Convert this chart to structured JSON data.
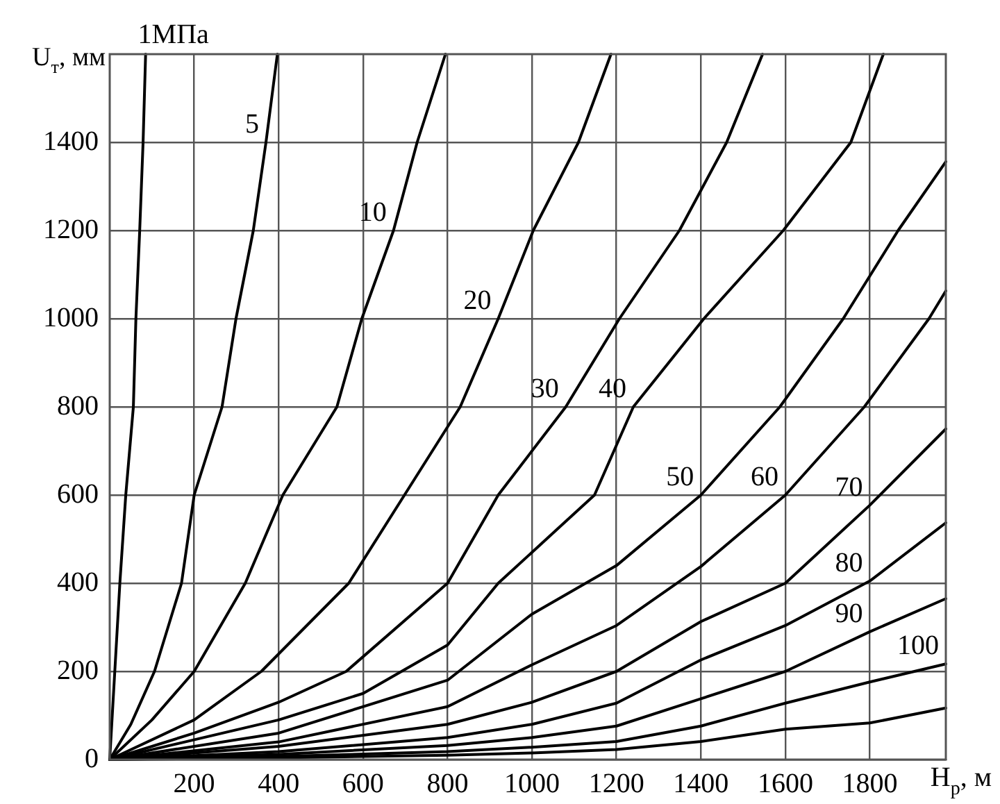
{
  "chart_data": {
    "type": "line",
    "xlabel": "H$_{р}$, м",
    "ylabel": "U$_{т}$, мм",
    "xlim": [
      0,
      1980
    ],
    "ylim": [
      0,
      1600
    ],
    "xticks": [
      200,
      400,
      600,
      800,
      1000,
      1200,
      1400,
      1600,
      1800
    ],
    "yticks": [
      0,
      200,
      400,
      600,
      800,
      1000,
      1200,
      1400
    ],
    "grid": true,
    "legend": false,
    "marker": "none",
    "line_style": "solid",
    "series": [
      {
        "color": "#000000",
        "x": [
          0,
          12,
          24,
          38,
          56,
          62,
          71,
          79,
          85
        ],
        "values": [
          0,
          200,
          400,
          600,
          800,
          1000,
          1200,
          1400,
          1600
        ]
      },
      {
        "color": "#000000",
        "x": [
          0,
          50,
          106,
          170,
          200,
          266,
          299,
          340,
          370,
          397
        ],
        "values": [
          0,
          80,
          200,
          400,
          600,
          800,
          1000,
          1200,
          1400,
          1600
        ]
      },
      {
        "color": "#000000",
        "x": [
          0,
          100,
          200,
          321,
          410,
          538,
          597,
          672,
          728,
          795
        ],
        "values": [
          0,
          90,
          200,
          400,
          600,
          800,
          1000,
          1200,
          1400,
          1600
        ]
      },
      {
        "color": "#000000",
        "x": [
          0,
          200,
          359,
          566,
          698,
          830,
          920,
          1003,
          1110,
          1187
        ],
        "values": [
          0,
          90,
          200,
          400,
          600,
          800,
          1000,
          1200,
          1400,
          1600
        ]
      },
      {
        "color": "#000000",
        "x": [
          0,
          200,
          400,
          560,
          800,
          920,
          1080,
          1207,
          1349,
          1461,
          1546
        ],
        "values": [
          0,
          60,
          130,
          200,
          400,
          600,
          800,
          1000,
          1200,
          1400,
          1600
        ]
      },
      {
        "color": "#000000",
        "x": [
          0,
          400,
          600,
          800,
          920,
          1148,
          1240,
          1407,
          1595,
          1755,
          1832
        ],
        "values": [
          0,
          90,
          150,
          260,
          400,
          600,
          800,
          1000,
          1200,
          1400,
          1600
        ]
      },
      {
        "color": "#000000",
        "x": [
          0,
          400,
          800,
          1000,
          1200,
          1400,
          1587,
          1737,
          1867,
          1980
        ],
        "values": [
          0,
          60,
          180,
          330,
          440,
          600,
          800,
          1000,
          1200,
          1356
        ]
      },
      {
        "color": "#000000",
        "x": [
          0,
          400,
          800,
          1000,
          1200,
          1400,
          1600,
          1787,
          1940,
          1980
        ],
        "values": [
          0,
          40,
          120,
          215,
          304,
          438,
          600,
          800,
          1000,
          1063
        ]
      },
      {
        "color": "#000000",
        "x": [
          0,
          400,
          800,
          1000,
          1200,
          1400,
          1600,
          1800,
          1980
        ],
        "values": [
          0,
          30,
          80,
          130,
          200,
          313,
          400,
          577,
          750
        ]
      },
      {
        "color": "#000000",
        "x": [
          0,
          400,
          800,
          1000,
          1200,
          1400,
          1600,
          1800,
          1980
        ],
        "values": [
          0,
          18,
          50,
          80,
          128,
          226,
          304,
          405,
          537
        ]
      },
      {
        "color": "#000000",
        "x": [
          0,
          400,
          800,
          1000,
          1200,
          1400,
          1600,
          1800,
          1980
        ],
        "values": [
          0,
          12,
          32,
          50,
          76,
          138,
          200,
          290,
          365
        ]
      },
      {
        "color": "#000000",
        "x": [
          0,
          400,
          800,
          1000,
          1200,
          1400,
          1600,
          1800,
          1980
        ],
        "values": [
          0,
          7,
          18,
          28,
          41,
          76,
          128,
          176,
          217
        ]
      },
      {
        "color": "#000000",
        "x": [
          0,
          400,
          800,
          1000,
          1200,
          1400,
          1600,
          1800,
          1980
        ],
        "values": [
          0,
          4,
          10,
          15,
          23,
          41,
          69,
          83,
          117
        ]
      }
    ],
    "annotations": [
      {
        "text": "1МПа",
        "x": 85,
        "y": 1600
      },
      {
        "text": "5",
        "x": 370,
        "y": 1400
      },
      {
        "text": "10",
        "x": 672,
        "y": 1200
      },
      {
        "text": "20",
        "x": 920,
        "y": 1000
      },
      {
        "text": "30",
        "x": 1080,
        "y": 800
      },
      {
        "text": "40",
        "x": 1240,
        "y": 800
      },
      {
        "text": "50",
        "x": 1400,
        "y": 600
      },
      {
        "text": "60",
        "x": 1600,
        "y": 600
      },
      {
        "text": "70",
        "x": 1800,
        "y": 577
      },
      {
        "text": "80",
        "x": 1800,
        "y": 405
      },
      {
        "text": "90",
        "x": 1800,
        "y": 290
      },
      {
        "text": "100",
        "x": 1980,
        "y": 217
      }
    ]
  }
}
